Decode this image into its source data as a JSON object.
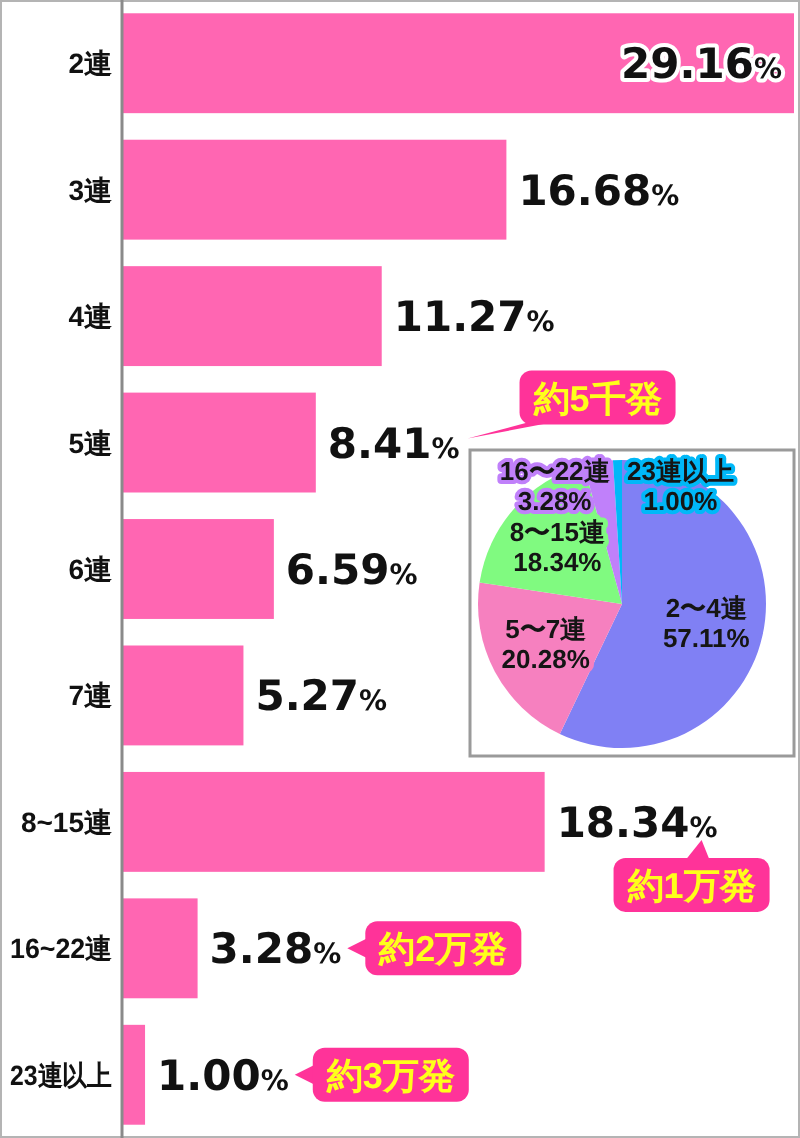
{
  "chart_data": [
    {
      "type": "bar",
      "orientation": "horizontal",
      "categories": [
        "2連",
        "3連",
        "4連",
        "5連",
        "6連",
        "7連",
        "8~15連",
        "16~22連",
        "23連以上"
      ],
      "values": [
        29.16,
        16.68,
        11.27,
        8.41,
        6.59,
        5.27,
        18.34,
        3.28,
        1.0
      ],
      "color": "#ff66b2",
      "value_labels": [
        "29.16%",
        "16.68%",
        "11.27%",
        "8.41%",
        "6.59%",
        "5.27%",
        "18.34%",
        "3.28%",
        "1.00%"
      ],
      "annotations": [
        "約5千発",
        "約1万発",
        "約2万発",
        "約3万発"
      ]
    },
    {
      "type": "pie",
      "categories": [
        "2〜4連",
        "5〜7連",
        "8〜15連",
        "16〜22連",
        "23連以上"
      ],
      "values": [
        57.11,
        20.28,
        18.34,
        3.28,
        1.0
      ],
      "colors": [
        "#8080f4",
        "#f680bf",
        "#80fa80",
        "#c080fa",
        "#00b8f8"
      ],
      "value_labels": [
        "57.11%",
        "20.28%",
        "18.34%",
        "3.28%",
        "1.00%"
      ]
    }
  ]
}
